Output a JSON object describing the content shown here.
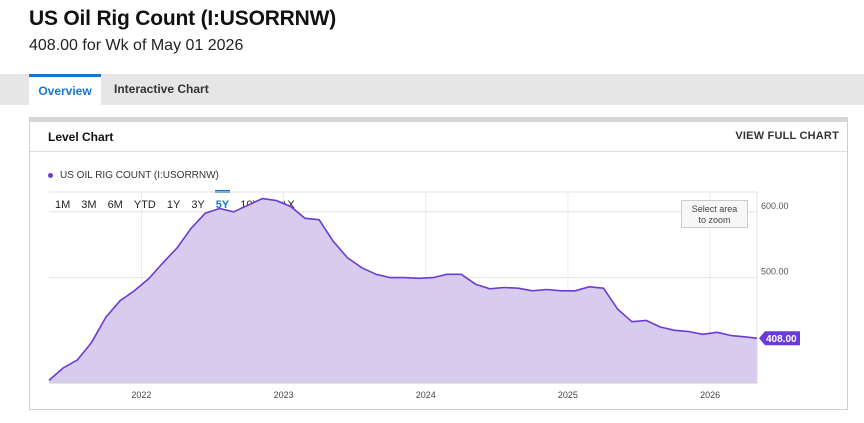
{
  "page": {
    "title": "US Oil Rig Count (I:USORRNW)",
    "subtitle": "408.00 for Wk of May 01 2026"
  },
  "tabs": [
    {
      "label": "Overview",
      "active": true
    },
    {
      "label": "Interactive Chart",
      "active": false
    }
  ],
  "panel": {
    "title": "Level Chart",
    "view_full_label": "VIEW FULL CHART",
    "legend_label": "US OIL RIG COUNT (I:USORRNW)",
    "ranges": [
      "1M",
      "3M",
      "6M",
      "YTD",
      "1Y",
      "3Y",
      "5Y",
      "10Y",
      "MAX"
    ],
    "active_range": "5Y",
    "zoom_line1": "Select area",
    "zoom_line2": "to zoom"
  },
  "chart_data": {
    "type": "area",
    "series": [
      {
        "name": "US OIL RIG COUNT (I:USORRNW)",
        "color": "#6b3bd6",
        "fill": "#d7cbee",
        "x": [
          2021.35,
          2021.45,
          2021.55,
          2021.65,
          2021.75,
          2021.85,
          2021.95,
          2022.05,
          2022.15,
          2022.25,
          2022.35,
          2022.45,
          2022.55,
          2022.65,
          2022.75,
          2022.85,
          2022.95,
          2023.05,
          2023.15,
          2023.25,
          2023.35,
          2023.45,
          2023.55,
          2023.65,
          2023.75,
          2023.85,
          2023.95,
          2024.05,
          2024.15,
          2024.25,
          2024.35,
          2024.45,
          2024.55,
          2024.65,
          2024.75,
          2024.85,
          2024.95,
          2025.05,
          2025.15,
          2025.25,
          2025.35,
          2025.45,
          2025.55,
          2025.65,
          2025.75,
          2025.85,
          2025.95,
          2026.05,
          2026.15,
          2026.25,
          2026.33
        ],
        "values": [
          344,
          363,
          375,
          402,
          440,
          465,
          480,
          498,
          522,
          545,
          575,
          598,
          605,
          600,
          610,
          620,
          617,
          608,
          590,
          588,
          555,
          530,
          515,
          505,
          500,
          500,
          499,
          500,
          505,
          505,
          490,
          483,
          485,
          484,
          480,
          482,
          480,
          480,
          486,
          484,
          452,
          433,
          435,
          425,
          420,
          418,
          414,
          417,
          412,
          410,
          408
        ]
      }
    ],
    "last_value_label": "408.00",
    "y_ticks": [
      "500.00",
      "600.00"
    ],
    "y_tick_values": [
      500,
      600
    ],
    "x_ticks": [
      "2022",
      "2023",
      "2024",
      "2025",
      "2026"
    ],
    "x_tick_values": [
      2022,
      2023,
      2024,
      2025,
      2026
    ],
    "xlim": [
      2021.35,
      2026.33
    ],
    "ylim": [
      340,
      630
    ],
    "grid": true
  }
}
